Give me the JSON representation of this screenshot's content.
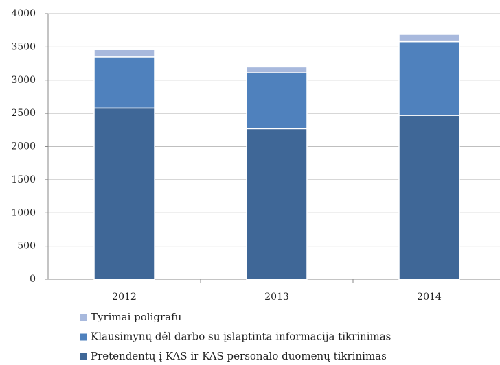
{
  "chart_data": {
    "type": "stacked_bar",
    "categories": [
      "2012",
      "2013",
      "2014"
    ],
    "series": [
      {
        "name": "Pretendentų į KAS ir KAS personalo duomenų tikrinimas",
        "color": "#3f6797",
        "values": [
          2580,
          2270,
          2470
        ]
      },
      {
        "name": "Klausimynų dėl darbo su įslaptinta informacija tikrinimas",
        "color": "#4f81bd",
        "values": [
          770,
          840,
          1110
        ]
      },
      {
        "name": "Tyrimai poligrafu",
        "color": "#a8b9dd",
        "values": [
          110,
          90,
          110
        ]
      }
    ],
    "ylim": [
      0,
      4000
    ],
    "yticks": [
      0,
      500,
      1000,
      1500,
      2000,
      2500,
      3000,
      3500,
      4000
    ],
    "grid": true,
    "legend": "bottom"
  }
}
